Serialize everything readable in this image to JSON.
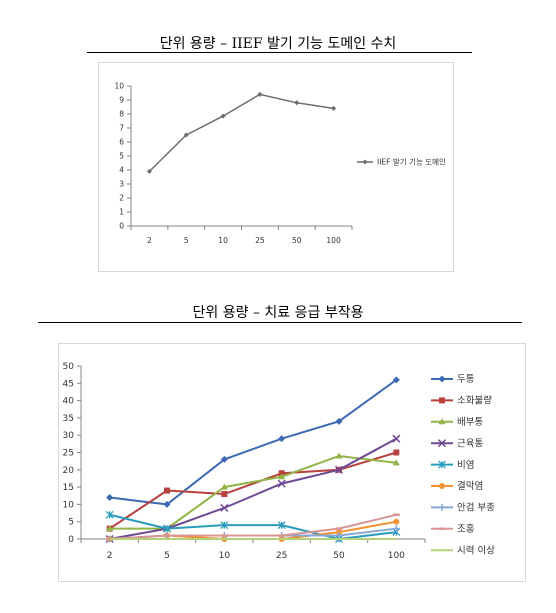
{
  "titles": {
    "top": "단위 용량 – IIEF 발기 기능 도메인 수치",
    "bottom": "단위 용량 – 치료 응급 부작용"
  },
  "chart_data": [
    {
      "type": "line",
      "categories": [
        "2",
        "5",
        "10",
        "25",
        "50",
        "100"
      ],
      "series": [
        {
          "name": "IIEF 발기 기능 도메인",
          "color": "#6e6e6e",
          "values": [
            3.9,
            6.5,
            7.85,
            9.4,
            8.8,
            8.4
          ]
        }
      ],
      "ylim": [
        0,
        10
      ],
      "yticks": [
        0,
        1,
        2,
        3,
        4,
        5,
        6,
        7,
        8,
        9,
        10
      ],
      "grid": false,
      "legend": "right"
    },
    {
      "type": "line",
      "categories": [
        "2",
        "5",
        "10",
        "25",
        "50",
        "100"
      ],
      "series": [
        {
          "name": "두통",
          "color": "#3d6ab3",
          "marker": "diamond",
          "values": [
            12,
            10,
            23,
            29,
            34,
            46
          ]
        },
        {
          "name": "소화불량",
          "color": "#b8403e",
          "marker": "square",
          "values": [
            3,
            14,
            13,
            19,
            20,
            25
          ]
        },
        {
          "name": "배부통",
          "color": "#91b447",
          "marker": "triangle",
          "values": [
            3,
            3,
            15,
            18,
            24,
            22
          ]
        },
        {
          "name": "근육통",
          "color": "#6f4a93",
          "marker": "x",
          "values": [
            0,
            3,
            9,
            16,
            20,
            29
          ]
        },
        {
          "name": "비염",
          "color": "#2c9cbc",
          "marker": "star",
          "values": [
            7,
            3,
            4,
            4,
            0,
            2
          ]
        },
        {
          "name": "결막염",
          "color": "#f29232",
          "marker": "circle",
          "values": [
            0,
            1,
            0,
            0,
            2,
            5
          ]
        },
        {
          "name": "안검 부종",
          "color": "#87a8d8",
          "marker": "plus",
          "values": [
            0,
            1,
            1,
            1,
            1,
            3
          ]
        },
        {
          "name": "조홍",
          "color": "#d89693",
          "marker": "dash",
          "values": [
            0,
            1,
            1,
            1,
            3,
            7
          ]
        },
        {
          "name": "시력 이상",
          "color": "#b5d07a",
          "marker": "none",
          "values": [
            0,
            0,
            0,
            0,
            0,
            0
          ]
        }
      ],
      "ylim": [
        0,
        50
      ],
      "yticks": [
        0,
        5,
        10,
        15,
        20,
        25,
        30,
        35,
        40,
        45,
        50
      ],
      "grid": false,
      "legend": "right"
    }
  ]
}
